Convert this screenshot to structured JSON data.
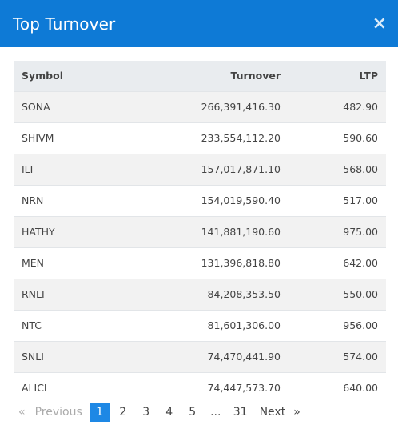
{
  "header": {
    "title": "Top Turnover",
    "close_glyph": "×"
  },
  "table": {
    "columns": {
      "symbol": "Symbol",
      "turnover": "Turnover",
      "ltp": "LTP"
    },
    "rows": [
      {
        "symbol": "SONA",
        "turnover": "266,391,416.30",
        "ltp": "482.90"
      },
      {
        "symbol": "SHIVM",
        "turnover": "233,554,112.20",
        "ltp": "590.60"
      },
      {
        "symbol": "ILI",
        "turnover": "157,017,871.10",
        "ltp": "568.00"
      },
      {
        "symbol": "NRN",
        "turnover": "154,019,590.40",
        "ltp": "517.00"
      },
      {
        "symbol": "HATHY",
        "turnover": "141,881,190.60",
        "ltp": "975.00"
      },
      {
        "symbol": "MEN",
        "turnover": "131,396,818.80",
        "ltp": "642.00"
      },
      {
        "symbol": "RNLI",
        "turnover": "84,208,353.50",
        "ltp": "550.00"
      },
      {
        "symbol": "NTC",
        "turnover": "81,601,306.00",
        "ltp": "956.00"
      },
      {
        "symbol": "SNLI",
        "turnover": "74,470,441.90",
        "ltp": "574.00"
      },
      {
        "symbol": "ALICL",
        "turnover": "74,447,573.70",
        "ltp": "640.00"
      }
    ]
  },
  "pagination": {
    "prev_arrow": "«",
    "previous": "Previous",
    "pages": [
      "1",
      "2",
      "3",
      "4",
      "5"
    ],
    "active_page": "1",
    "ellipsis": "...",
    "last_page": "31",
    "next": "Next",
    "next_arrow": "»"
  },
  "colors": {
    "header_bg": "#0e7ad6",
    "active_page_bg": "#1e88e5",
    "thead_bg": "#e9ecef"
  }
}
